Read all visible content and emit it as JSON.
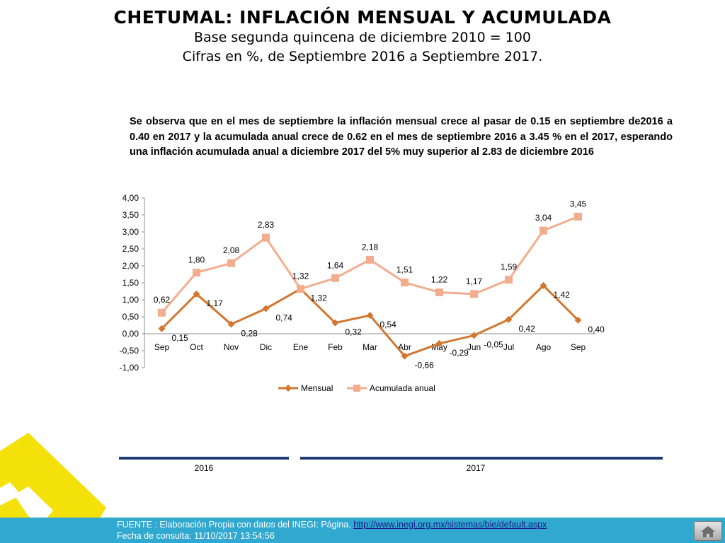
{
  "header": {
    "title": "CHETUMAL: INFLACIÓN MENSUAL Y ACUMULADA",
    "subtitle1": "Base segunda quincena de diciembre 2010 = 100",
    "subtitle2": "Cifras en %,  de Septiembre 2016 a Septiembre 2017."
  },
  "description": "Se observa que en el mes de septiembre la inflación mensual crece al pasar de 0.15 en septiembre de2016 a 0.40 en 2017 y la acumulada anual crece de 0.62 en el mes de septiembre 2016  a  3.45 % en el 2017, esperando una inflación acumulada anual a diciembre 2017 del 5%  muy superior al 2.83 de diciembre 2016",
  "chart_data": {
    "type": "line",
    "categories": [
      "Sep",
      "Oct",
      "Nov",
      "Dic",
      "Ene",
      "Feb",
      "Mar",
      "Abr",
      "May",
      "Jun",
      "Jul",
      "Ago",
      "Sep"
    ],
    "series": [
      {
        "name": "Mensual",
        "values": [
          0.15,
          1.17,
          0.28,
          0.74,
          1.32,
          0.32,
          0.54,
          -0.66,
          -0.29,
          -0.05,
          0.42,
          1.42,
          0.4
        ],
        "labels": [
          "0,15",
          "1,17",
          "0,28",
          "0,74",
          "1,32",
          "0,32",
          "0,54",
          "-0,66",
          "-0,29",
          "-0,05",
          "0,42",
          "1,42",
          "0,40"
        ],
        "color": "#d2772f",
        "marker": "diamond"
      },
      {
        "name": "Acumulada anual",
        "values": [
          0.62,
          1.8,
          2.08,
          2.83,
          1.32,
          1.64,
          2.18,
          1.51,
          1.22,
          1.17,
          1.59,
          3.04,
          3.45
        ],
        "labels": [
          "0,62",
          "1,80",
          "2,08",
          "2,83",
          "1,32",
          "1,64",
          "2,18",
          "1,51",
          "1,22",
          "1,17",
          "1,59",
          "3,04",
          "3,45"
        ],
        "color": "#f2ad8e",
        "marker": "square"
      }
    ],
    "ylim": [
      -1.0,
      4.0
    ],
    "yticks": [
      "4,00",
      "3,50",
      "3,00",
      "2,50",
      "2,00",
      "1,50",
      "1,00",
      "0,50",
      "0,00",
      "-0,50",
      "-1,00"
    ],
    "ytick_values": [
      4.0,
      3.5,
      3.0,
      2.5,
      2.0,
      1.5,
      1.0,
      0.5,
      0.0,
      -0.5,
      -1.0
    ],
    "grid": false,
    "legend": "bottom"
  },
  "years": {
    "y2016": "2016",
    "y2017": "2017"
  },
  "footer": {
    "source_prefix": "FUENTE : Elaboración Propia con datos del INEGI: Página. ",
    "source_link": "http://www.inegi.org.mx/sistemas/bie/default.aspx",
    "consult_date": "Fecha de consulta: 11/10/2017 13:54:56"
  },
  "colors": {
    "footer_bg": "#31a8cf",
    "logo_yellow": "#f5e10a",
    "year_bar": "#1f3b73"
  },
  "icons": {
    "home": "home-icon",
    "logo": "diamond-logo"
  }
}
